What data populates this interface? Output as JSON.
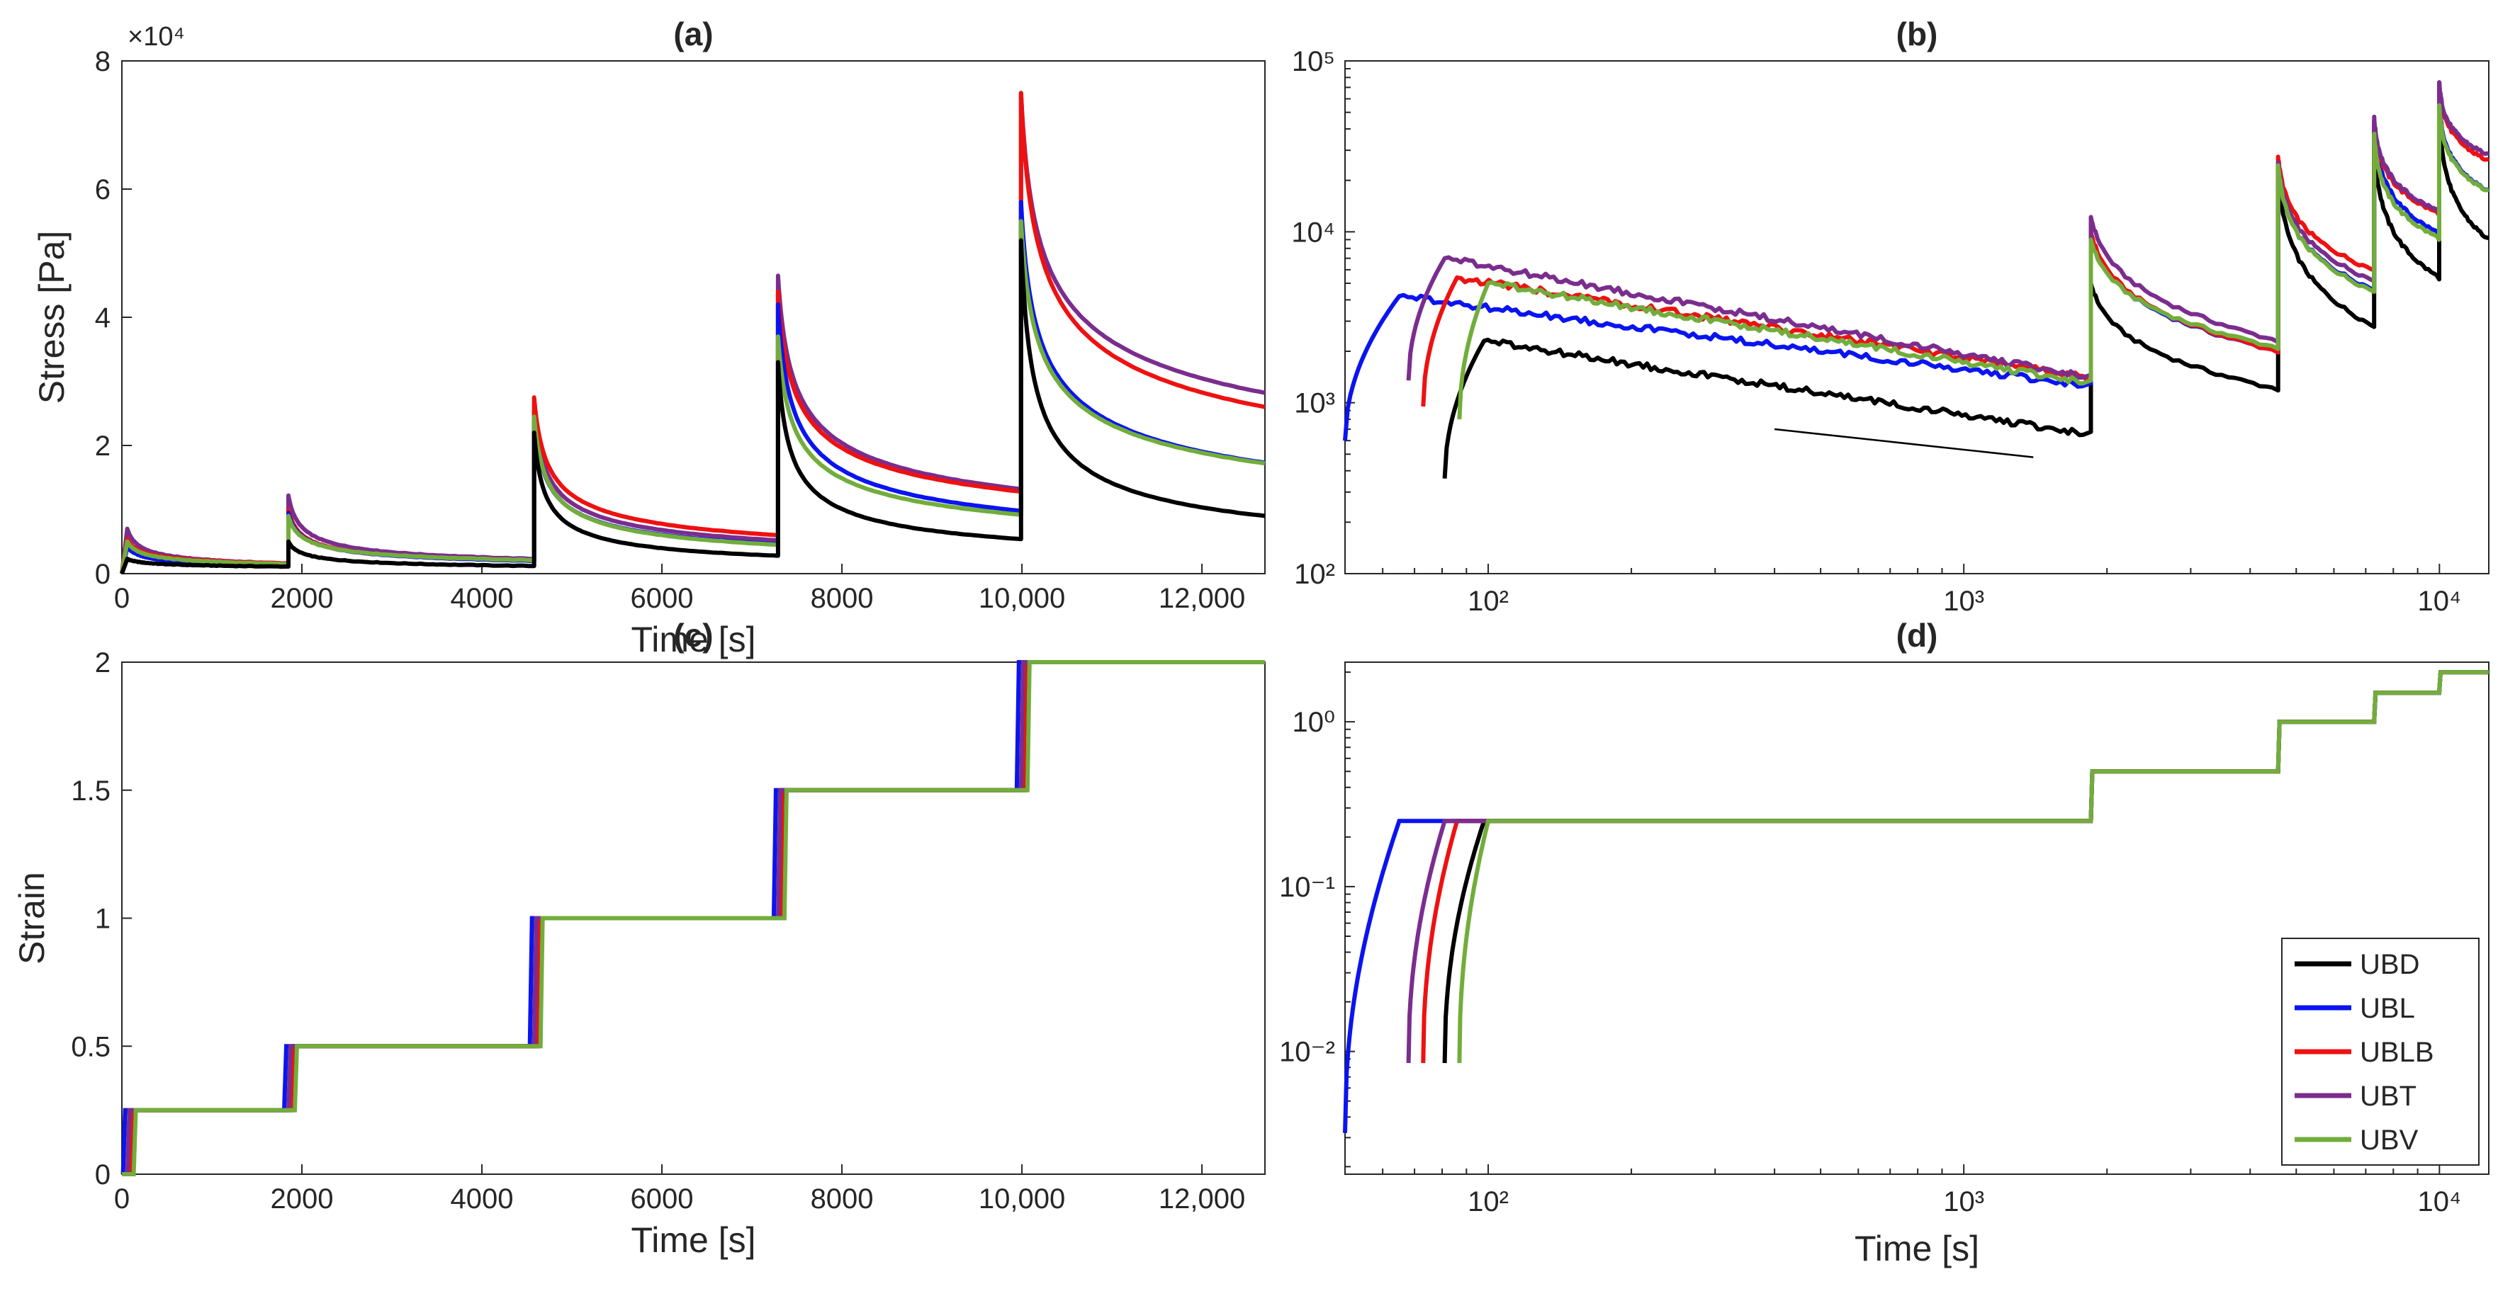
{
  "colors": {
    "UBD": "#000000",
    "UBL": "#0a14f0",
    "UBLB": "#ee1111",
    "UBT": "#7b2d8e",
    "UBV": "#72ad3c"
  },
  "chart_data": [
    {
      "panel": "a",
      "type": "line",
      "title": "(a)",
      "xlabel": "Time [s]",
      "ylabel": "Stress [Pa]",
      "exponent_label": "×10⁴",
      "xlim": [
        0,
        12700
      ],
      "ylim": [
        0,
        80000
      ],
      "xticks": [
        0,
        2000,
        4000,
        6000,
        8000,
        10000,
        12000
      ],
      "xtick_labels": [
        "0",
        "2000",
        "4000",
        "6000",
        "8000",
        "10,000",
        "12,000"
      ],
      "yticks": [
        0,
        20000,
        40000,
        60000,
        80000
      ],
      "ytick_labels": [
        "0",
        "2",
        "4",
        "6",
        "8"
      ],
      "step_times": [
        60,
        1850,
        4580,
        7290,
        9990
      ],
      "end_time": 12700,
      "series": [
        {
          "name": "UBD",
          "peaks": [
            2300,
            5000,
            22000,
            33000,
            52000
          ],
          "ends": [
            1100,
            1200,
            2800,
            5400,
            9000
          ]
        },
        {
          "name": "UBL",
          "peaks": [
            4200,
            9500,
            24000,
            42000,
            58000
          ],
          "ends": [
            1300,
            2000,
            4600,
            9800,
            17300
          ]
        },
        {
          "name": "UBLB",
          "peaks": [
            5400,
            10000,
            27500,
            44000,
            75000
          ],
          "ends": [
            1600,
            2000,
            6000,
            12800,
            26000
          ]
        },
        {
          "name": "UBT",
          "peaks": [
            7000,
            12200,
            25500,
            46500,
            75000
          ],
          "ends": [
            1600,
            2300,
            5200,
            13200,
            28200
          ]
        },
        {
          "name": "UBV",
          "peaks": [
            5000,
            9000,
            24500,
            37000,
            55000
          ],
          "ends": [
            1500,
            2100,
            4500,
            9200,
            17200
          ]
        }
      ]
    },
    {
      "panel": "b",
      "type": "line",
      "title": "(b)",
      "xlabel": "",
      "ylabel": "",
      "xscale": "log",
      "yscale": "log",
      "xlim": [
        50,
        12700
      ],
      "ylim": [
        100,
        100000
      ],
      "xticks": [
        100,
        1000,
        10000
      ],
      "xtick_labels": [
        "10²",
        "10³",
        "10⁴"
      ],
      "yticks": [
        100,
        1000,
        10000,
        100000
      ],
      "ytick_labels": [
        "10²",
        "10³",
        "10⁴",
        "10⁵"
      ],
      "reference_line": {
        "x": [
          400,
          1400
        ],
        "y": [
          700,
          480
        ]
      },
      "series": [
        {
          "name": "UBD",
          "start": [
            81,
            360
          ],
          "peak": [
            98,
            2300
          ],
          "pre_step": 650
        },
        {
          "name": "UBL",
          "start": [
            50,
            600
          ],
          "peak": [
            65,
            4200
          ],
          "pre_step": 1250
        },
        {
          "name": "UBLB",
          "start": [
            73,
            950
          ],
          "peak": [
            86,
            5400
          ],
          "pre_step": 1400
        },
        {
          "name": "UBT",
          "start": [
            68,
            1350
          ],
          "peak": [
            81,
            7000
          ],
          "pre_step": 1400
        },
        {
          "name": "UBV",
          "start": [
            87,
            800
          ],
          "peak": [
            100,
            5000
          ],
          "pre_step": 1300
        }
      ]
    },
    {
      "panel": "c",
      "type": "line",
      "title": "(c)",
      "xlabel": "",
      "ylabel": "Strain",
      "xlim": [
        0,
        12700
      ],
      "ylim": [
        0,
        2
      ],
      "xticks": [
        0,
        2000,
        4000,
        6000,
        8000,
        10000,
        12000
      ],
      "yticks": [
        0,
        0.5,
        1,
        1.5,
        2
      ],
      "ytick_labels": [
        "0",
        "0.5",
        "1",
        "1.5",
        "2"
      ],
      "step_times": [
        60,
        1850,
        4580,
        7290,
        9990
      ],
      "levels": [
        0.25,
        0.5,
        1,
        1.5,
        2
      ]
    },
    {
      "panel": "d",
      "type": "line",
      "title": "(d)",
      "xlabel": "Time [s]",
      "ylabel": "",
      "xscale": "log",
      "yscale": "log",
      "xlim": [
        50,
        12700
      ],
      "ylim": [
        0.0018,
        2.3
      ],
      "xticks": [
        100,
        1000,
        10000
      ],
      "xtick_labels": [
        "10²",
        "10³",
        "10⁴"
      ],
      "yticks": [
        0.01,
        0.1,
        1
      ],
      "ytick_labels": [
        "10⁻²",
        "10⁻¹",
        "10⁰"
      ],
      "levels": [
        0.25,
        0.5,
        1,
        1.5,
        2
      ],
      "step_times": [
        1850,
        4580,
        7290,
        9990
      ],
      "series": [
        {
          "name": "UBD",
          "ramp_start": [
            81,
            0.0085
          ],
          "ramp_end": 98
        },
        {
          "name": "UBL",
          "ramp_start": [
            50,
            0.0032
          ],
          "ramp_end": 65
        },
        {
          "name": "UBLB",
          "ramp_start": [
            73,
            0.0085
          ],
          "ramp_end": 86
        },
        {
          "name": "UBT",
          "ramp_start": [
            68,
            0.0085
          ],
          "ramp_end": 81
        },
        {
          "name": "UBV",
          "ramp_start": [
            87,
            0.0085
          ],
          "ramp_end": 100
        }
      ],
      "legend": {
        "position": "bottom-right",
        "entries": [
          "UBD",
          "UBL",
          "UBLB",
          "UBT",
          "UBV"
        ]
      }
    }
  ]
}
